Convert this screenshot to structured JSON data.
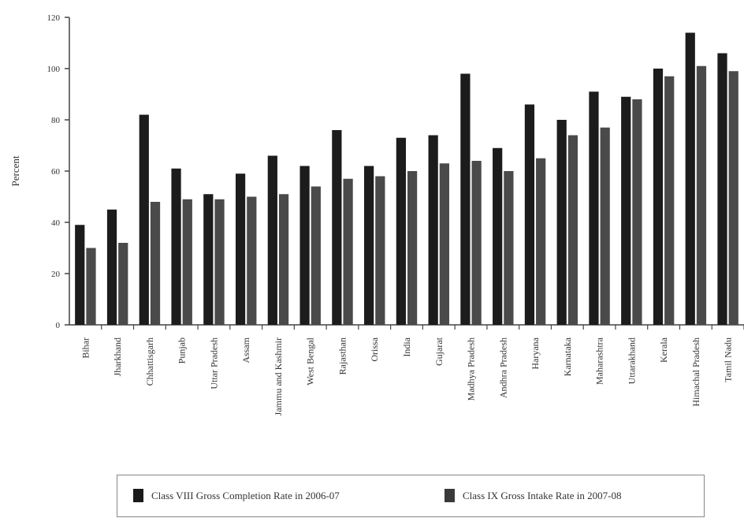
{
  "chart_data": {
    "type": "bar",
    "ylabel": "Percent",
    "xlabel": "",
    "ylim": [
      0,
      120
    ],
    "yticks": [
      "0",
      "20",
      "40",
      "60",
      "80",
      "100",
      "120"
    ],
    "grid": false,
    "legend_placement": "bottom",
    "categories": [
      "Bihar",
      "Jharkhand",
      "Chhattisgarh",
      "Punjab",
      "Uttar Pradesh",
      "Assam",
      "Jammu and Kashmir",
      "West Bengal",
      "Rajasthan",
      "Orissa",
      "India",
      "Gujarat",
      "Madhya Pradesh",
      "Andhra Pradesh",
      "Haryana",
      "Karnataka",
      "Maharashtra",
      "Uttarakhand",
      "Kerala",
      "Himachal Pradesh",
      "Tamil Nadu"
    ],
    "series": [
      {
        "name": "Class VIII Gross Completion Rate in 2006-07",
        "color": "#1c1c1c",
        "values": [
          39,
          45,
          82,
          61,
          51,
          59,
          66,
          62,
          76,
          62,
          73,
          74,
          98,
          69,
          86,
          80,
          91,
          89,
          100,
          114,
          106
        ]
      },
      {
        "name": "Class IX Gross Intake Rate in 2007-08",
        "color": "#4a4a4a",
        "values": [
          30,
          32,
          48,
          49,
          49,
          50,
          51,
          54,
          57,
          58,
          60,
          63,
          64,
          60,
          65,
          74,
          77,
          88,
          97,
          101,
          99
        ]
      }
    ]
  }
}
